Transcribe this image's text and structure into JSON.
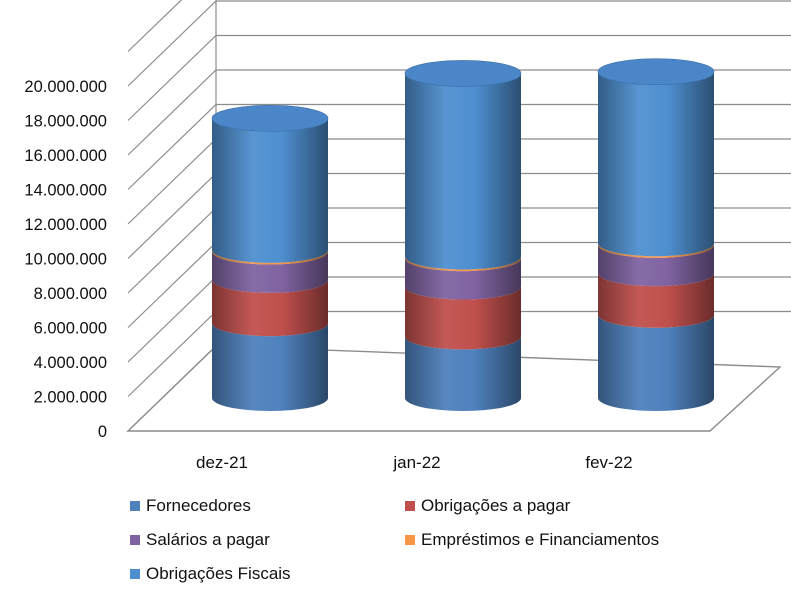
{
  "chart_data": {
    "type": "bar",
    "style": "stacked-cylinder-3d",
    "categories": [
      "dez-21",
      "jan-22",
      "fev-22"
    ],
    "series": [
      {
        "name": "Fornecedores",
        "color": "#4f81bd",
        "values": [
          4500000,
          3700000,
          5000000
        ]
      },
      {
        "name": "Obrigações a pagar",
        "color": "#c0504d",
        "values": [
          2600000,
          3000000,
          2500000
        ]
      },
      {
        "name": "Salários a pagar",
        "color": "#8064a2",
        "values": [
          1700000,
          1700000,
          1700000
        ]
      },
      {
        "name": "Empréstimos e Financiamentos",
        "color": "#f79646",
        "values": [
          100000,
          100000,
          100000
        ]
      },
      {
        "name": "Obrigações Fiscais",
        "color": "#4f8fd0",
        "values": [
          7900000,
          11000000,
          10300000
        ]
      }
    ],
    "yticks": [
      "0",
      "2.000.000",
      "4.000.000",
      "6.000.000",
      "8.000.000",
      "10.000.000",
      "12.000.000",
      "14.000.000",
      "16.000.000",
      "18.000.000",
      "20.000.000"
    ],
    "ylim": [
      0,
      20000000
    ],
    "grid": true,
    "legend_position": "bottom"
  }
}
